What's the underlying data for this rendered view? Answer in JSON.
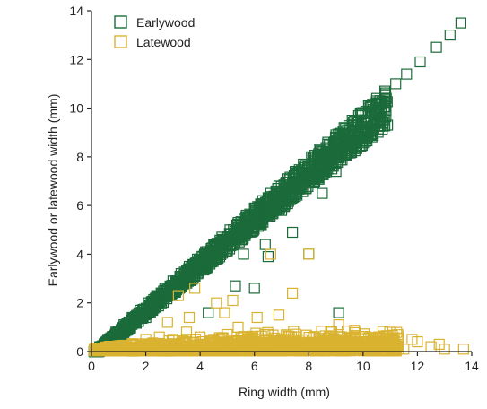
{
  "chart_data": {
    "type": "scatter",
    "title": "",
    "xlabel": "Ring width (mm)",
    "ylabel": "Earlywood or latewood width (mm)",
    "xlim": [
      0,
      14
    ],
    "ylim": [
      0,
      14
    ],
    "xticks": [
      "0",
      "2",
      "4",
      "6",
      "8",
      "10",
      "12",
      "14"
    ],
    "yticks": [
      "0",
      "2",
      "4",
      "6",
      "8",
      "10",
      "12",
      "14"
    ],
    "grid": false,
    "legend_position": "top-left",
    "series": [
      {
        "name": "Earlywood",
        "color": "#1b6b3a",
        "marker": "open-square",
        "x": [
          0.3,
          0.6,
          0.9,
          1.2,
          1.5,
          1.8,
          2.1,
          2.4,
          2.7,
          3.0,
          3.3,
          3.6,
          3.9,
          4.2,
          4.5,
          4.8,
          5.1,
          5.4,
          5.7,
          6.0,
          6.3,
          6.6,
          6.9,
          7.2,
          7.5,
          7.8,
          8.1,
          8.4,
          8.7,
          9.0,
          9.3,
          9.6,
          9.9,
          10.2,
          10.5,
          10.8,
          11.2,
          11.6,
          12.1,
          12.7,
          13.2,
          13.6,
          5.6,
          6.5,
          7.4,
          8.0,
          9.0,
          6.0,
          7.0,
          8.5,
          9.1,
          4.3,
          5.3,
          6.4,
          2.0,
          3.0,
          4.0
        ],
        "y": [
          0.2,
          0.5,
          0.8,
          1.1,
          1.4,
          1.7,
          2.0,
          2.3,
          2.6,
          2.9,
          3.2,
          3.5,
          3.8,
          4.1,
          4.4,
          4.7,
          5.0,
          5.3,
          5.6,
          5.9,
          6.2,
          6.5,
          6.8,
          7.1,
          7.4,
          7.7,
          8.0,
          8.3,
          8.6,
          8.9,
          9.2,
          9.5,
          9.8,
          10.1,
          10.4,
          10.7,
          11.0,
          11.4,
          11.9,
          12.5,
          13.0,
          13.5,
          4.0,
          3.9,
          4.9,
          4.0,
          7.4,
          2.6,
          5.8,
          6.5,
          1.6,
          1.6,
          2.7,
          4.4,
          1.4,
          2.3,
          3.5
        ]
      },
      {
        "name": "Latewood",
        "color": "#d9b230",
        "marker": "open-square",
        "x": [
          0.5,
          1.0,
          1.5,
          2.0,
          2.5,
          3.0,
          3.5,
          4.0,
          4.5,
          5.0,
          5.5,
          6.0,
          6.5,
          7.0,
          7.5,
          8.0,
          8.5,
          9.0,
          9.5,
          10.0,
          10.5,
          11.0,
          11.5,
          12.0,
          12.5,
          13.0,
          13.7,
          3.2,
          3.8,
          4.6,
          5.2,
          6.6,
          6.9,
          7.4,
          8.0,
          4.9,
          2.8,
          3.6,
          5.4,
          6.1,
          9.1,
          10.9,
          11.8,
          12.8
        ],
        "y": [
          0.1,
          0.2,
          0.3,
          0.5,
          0.6,
          0.5,
          0.8,
          0.6,
          0.5,
          0.7,
          0.6,
          0.4,
          0.7,
          0.5,
          0.6,
          0.3,
          0.4,
          0.5,
          0.3,
          0.4,
          0.2,
          0.3,
          0.1,
          0.4,
          0.2,
          0.1,
          0.1,
          2.3,
          2.6,
          2.0,
          2.1,
          4.0,
          1.5,
          2.4,
          4.0,
          1.6,
          1.2,
          1.4,
          1.0,
          1.4,
          1.1,
          0.5,
          0.5,
          0.3
        ]
      }
    ],
    "dense_clouds": [
      {
        "series": "Earlywood",
        "description_points_x": [
          0.0,
          14.0
        ],
        "relation": "y≈x-band"
      },
      {
        "series": "Latewood",
        "relation": "band near 0-0.8"
      }
    ]
  }
}
